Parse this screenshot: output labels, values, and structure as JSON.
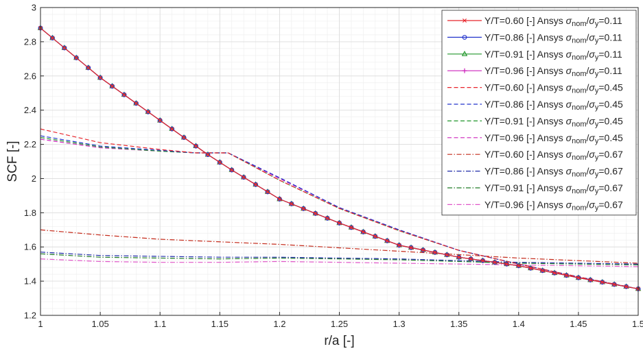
{
  "chart_data": {
    "type": "line",
    "title": "",
    "xlabel": "r/a [-]",
    "ylabel": "SCF [-]",
    "xlim": [
      1,
      1.5
    ],
    "ylim": [
      1.2,
      3
    ],
    "xticks": [
      1,
      1.05,
      1.1,
      1.15,
      1.2,
      1.25,
      1.3,
      1.35,
      1.4,
      1.45,
      1.5
    ],
    "xtick_labels": [
      "1",
      "1.05",
      "1.1",
      "1.15",
      "1.2",
      "1.25",
      "1.3",
      "1.35",
      "1.4",
      "1.45",
      "1.5"
    ],
    "yticks": [
      1.2,
      1.4,
      1.6,
      1.8,
      2,
      2.2,
      2.4,
      2.6,
      2.8,
      3
    ],
    "ytick_labels": [
      "1.2",
      "1.4",
      "1.6",
      "1.8",
      "2",
      "2.2",
      "2.4",
      "2.6",
      "2.8",
      "3"
    ],
    "grid": true,
    "minor_grid": true,
    "legend_position": "top-right",
    "legend_prefix": "Ansys",
    "legend_ratio": {
      "num": "σ",
      "num_sub": "nom",
      "den": "σ",
      "den_sub": "y"
    },
    "colors": {
      "red": "#e8242b",
      "blue": "#2233cc",
      "green": "#20962a",
      "magenta": "#cc22bb",
      "dark_red": "#c42a1a",
      "navy": "#1e2aa8",
      "dark_green": "#1f7a24",
      "pink": "#e055c8"
    },
    "series": [
      {
        "name": "Y/T=0.60 [-] Ansys σnom/σy=0.11",
        "label_yt": "Y/T=0.60 [-]",
        "label_ratio": "=0.11",
        "color": "#e8242b",
        "dash": "solid",
        "marker": "x",
        "x": [
          1.0,
          1.05,
          1.1,
          1.12,
          1.14,
          1.16,
          1.2,
          1.25,
          1.3,
          1.35,
          1.4,
          1.45,
          1.5
        ],
        "y": [
          2.88,
          2.59,
          2.34,
          2.24,
          2.14,
          2.05,
          1.88,
          1.74,
          1.61,
          1.54,
          1.49,
          1.42,
          1.355
        ]
      },
      {
        "name": "Y/T=0.86 [-] Ansys σnom/σy=0.11",
        "label_yt": "Y/T=0.86 [-]",
        "label_ratio": "=0.11",
        "color": "#2233cc",
        "dash": "solid",
        "marker": "o",
        "x": [
          1.0,
          1.05,
          1.1,
          1.12,
          1.14,
          1.16,
          1.2,
          1.25,
          1.3,
          1.35,
          1.4,
          1.45,
          1.5
        ],
        "y": [
          2.88,
          2.59,
          2.34,
          2.24,
          2.14,
          2.05,
          1.88,
          1.74,
          1.61,
          1.54,
          1.49,
          1.42,
          1.355
        ]
      },
      {
        "name": "Y/T=0.91 [-] Ansys σnom/σy=0.11",
        "label_yt": "Y/T=0.91 [-]",
        "label_ratio": "=0.11",
        "color": "#20962a",
        "dash": "solid",
        "marker": "triangle",
        "x": [
          1.0,
          1.05,
          1.1,
          1.12,
          1.14,
          1.16,
          1.2,
          1.25,
          1.3,
          1.35,
          1.4,
          1.45,
          1.5
        ],
        "y": [
          2.88,
          2.59,
          2.34,
          2.24,
          2.14,
          2.05,
          1.88,
          1.74,
          1.61,
          1.54,
          1.49,
          1.42,
          1.355
        ]
      },
      {
        "name": "Y/T=0.96 [-] Ansys σnom/σy=0.11",
        "label_yt": "Y/T=0.96 [-]",
        "label_ratio": "=0.11",
        "color": "#cc22bb",
        "dash": "solid",
        "marker": "plus",
        "x": [
          1.0,
          1.05,
          1.1,
          1.12,
          1.14,
          1.16,
          1.2,
          1.25,
          1.3,
          1.35,
          1.4,
          1.45,
          1.5
        ],
        "y": [
          2.88,
          2.59,
          2.34,
          2.24,
          2.14,
          2.05,
          1.88,
          1.74,
          1.61,
          1.54,
          1.49,
          1.42,
          1.355
        ]
      },
      {
        "name": "Y/T=0.60 [-] Ansys σnom/σy=0.45",
        "label_yt": "Y/T=0.60 [-]",
        "label_ratio": "=0.45",
        "color": "#e8242b",
        "dash": "dashed",
        "marker": "none",
        "x": [
          1.0,
          1.05,
          1.1,
          1.13,
          1.157,
          1.2,
          1.25,
          1.3,
          1.35,
          1.4,
          1.45,
          1.5
        ],
        "y": [
          2.29,
          2.21,
          2.17,
          2.15,
          2.15,
          1.99,
          1.825,
          1.695,
          1.58,
          1.5,
          1.425,
          1.355
        ]
      },
      {
        "name": "Y/T=0.86 [-] Ansys σnom/σy=0.45",
        "label_yt": "Y/T=0.86 [-]",
        "label_ratio": "=0.45",
        "color": "#2233cc",
        "dash": "dashed",
        "marker": "none",
        "x": [
          1.0,
          1.05,
          1.1,
          1.13,
          1.157,
          1.2,
          1.25,
          1.3,
          1.35,
          1.4,
          1.45,
          1.5
        ],
        "y": [
          2.25,
          2.19,
          2.165,
          2.15,
          2.15,
          2.005,
          1.83,
          1.7,
          1.58,
          1.5,
          1.425,
          1.355
        ]
      },
      {
        "name": "Y/T=0.91 [-] Ansys σnom/σy=0.45",
        "label_yt": "Y/T=0.91 [-]",
        "label_ratio": "=0.45",
        "color": "#20962a",
        "dash": "dashed",
        "marker": "none",
        "x": [
          1.0,
          1.05,
          1.1,
          1.13,
          1.157,
          1.2,
          1.25,
          1.3,
          1.35,
          1.4,
          1.45,
          1.5
        ],
        "y": [
          2.24,
          2.185,
          2.16,
          2.15,
          2.15,
          1.99,
          1.825,
          1.695,
          1.58,
          1.5,
          1.425,
          1.355
        ]
      },
      {
        "name": "Y/T=0.96 [-] Ansys σnom/σy=0.45",
        "label_yt": "Y/T=0.96 [-]",
        "label_ratio": "=0.45",
        "color": "#cc22bb",
        "dash": "dashed",
        "marker": "none",
        "x": [
          1.0,
          1.05,
          1.1,
          1.13,
          1.157,
          1.2,
          1.25,
          1.3,
          1.35,
          1.4,
          1.45,
          1.5
        ],
        "y": [
          2.23,
          2.18,
          2.16,
          2.15,
          2.15,
          2.0,
          1.83,
          1.7,
          1.58,
          1.5,
          1.425,
          1.355
        ]
      },
      {
        "name": "Y/T=0.60 [-] Ansys σnom/σy=0.67",
        "label_yt": "Y/T=0.60 [-]",
        "label_ratio": "=0.67",
        "color": "#c42a1a",
        "dash": "dashdot",
        "marker": "none",
        "x": [
          1.0,
          1.05,
          1.1,
          1.15,
          1.2,
          1.25,
          1.3,
          1.35,
          1.4,
          1.45,
          1.5
        ],
        "y": [
          1.7,
          1.67,
          1.645,
          1.63,
          1.615,
          1.595,
          1.575,
          1.555,
          1.535,
          1.52,
          1.505
        ]
      },
      {
        "name": "Y/T=0.86 [-] Ansys σnom/σy=0.67",
        "label_yt": "Y/T=0.86 [-]",
        "label_ratio": "=0.67",
        "color": "#1e2aa8",
        "dash": "dashdot",
        "marker": "none",
        "x": [
          1.0,
          1.05,
          1.1,
          1.15,
          1.2,
          1.25,
          1.3,
          1.35,
          1.4,
          1.45,
          1.5
        ],
        "y": [
          1.57,
          1.55,
          1.545,
          1.54,
          1.54,
          1.535,
          1.53,
          1.52,
          1.51,
          1.505,
          1.5
        ]
      },
      {
        "name": "Y/T=0.91 [-] Ansys σnom/σy=0.67",
        "label_yt": "Y/T=0.91 [-]",
        "label_ratio": "=0.67",
        "color": "#1f7a24",
        "dash": "dashdot",
        "marker": "none",
        "x": [
          1.0,
          1.05,
          1.1,
          1.15,
          1.2,
          1.25,
          1.3,
          1.35,
          1.4,
          1.45,
          1.5
        ],
        "y": [
          1.56,
          1.54,
          1.535,
          1.53,
          1.535,
          1.53,
          1.525,
          1.515,
          1.505,
          1.5,
          1.495
        ]
      },
      {
        "name": "Y/T=0.96 [-] Ansys σnom/σy=0.67",
        "label_yt": "Y/T=0.96 [-]",
        "label_ratio": "=0.67",
        "color": "#e055c8",
        "dash": "dashdot",
        "marker": "none",
        "x": [
          1.0,
          1.05,
          1.1,
          1.15,
          1.2,
          1.25,
          1.3,
          1.35,
          1.4,
          1.45,
          1.5
        ],
        "y": [
          1.53,
          1.515,
          1.51,
          1.51,
          1.515,
          1.51,
          1.505,
          1.5,
          1.495,
          1.49,
          1.485
        ]
      }
    ]
  }
}
